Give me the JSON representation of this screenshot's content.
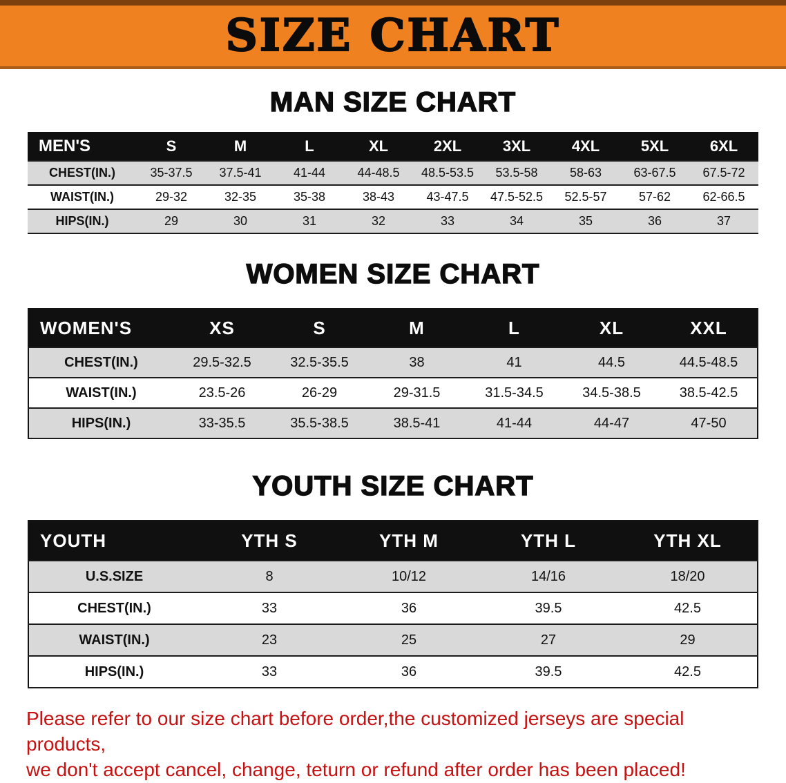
{
  "banner": {
    "title": "SIZE CHART"
  },
  "men": {
    "heading": "MAN SIZE CHART",
    "table": {
      "header": [
        "MEN'S",
        "S",
        "M",
        "L",
        "XL",
        "2XL",
        "3XL",
        "4XL",
        "5XL",
        "6XL"
      ],
      "rows": [
        [
          "CHEST(IN.)",
          "35-37.5",
          "37.5-41",
          "41-44",
          "44-48.5",
          "48.5-53.5",
          "53.5-58",
          "58-63",
          "63-67.5",
          "67.5-72"
        ],
        [
          "WAIST(IN.)",
          "29-32",
          "32-35",
          "35-38",
          "38-43",
          "43-47.5",
          "47.5-52.5",
          "52.5-57",
          "57-62",
          "62-66.5"
        ],
        [
          "HIPS(IN.)",
          "29",
          "30",
          "31",
          "32",
          "33",
          "34",
          "35",
          "36",
          "37"
        ]
      ]
    }
  },
  "women": {
    "heading": "WOMEN SIZE CHART",
    "table": {
      "header": [
        "WOMEN'S",
        "XS",
        "S",
        "M",
        "L",
        "XL",
        "XXL"
      ],
      "rows": [
        [
          "CHEST(IN.)",
          "29.5-32.5",
          "32.5-35.5",
          "38",
          "41",
          "44.5",
          "44.5-48.5"
        ],
        [
          "WAIST(IN.)",
          "23.5-26",
          "26-29",
          "29-31.5",
          "31.5-34.5",
          "34.5-38.5",
          "38.5-42.5"
        ],
        [
          "HIPS(IN.)",
          "33-35.5",
          "35.5-38.5",
          "38.5-41",
          "41-44",
          "44-47",
          "47-50"
        ]
      ]
    }
  },
  "youth": {
    "heading": "YOUTH SIZE CHART",
    "table": {
      "header": [
        "YOUTH",
        "YTH S",
        "YTH M",
        "YTH L",
        "YTH XL"
      ],
      "rows": [
        [
          "U.S.SIZE",
          "8",
          "10/12",
          "14/16",
          "18/20"
        ],
        [
          "CHEST(IN.)",
          "33",
          "36",
          "39.5",
          "42.5"
        ],
        [
          "WAIST(IN.)",
          "23",
          "25",
          "27",
          "29"
        ],
        [
          "HIPS(IN.)",
          "33",
          "36",
          "39.5",
          "42.5"
        ]
      ]
    }
  },
  "footer": {
    "line1": "Please refer to our size chart before order,the customized jerseys are special products,",
    "line2": "we don't accept cancel, change, teturn or refund after order has been placed!"
  },
  "colors": {
    "banner_bg": "#f08120",
    "banner_border": "#7c3f0e",
    "table_header_bg": "#101010",
    "row_alt_bg": "#d9d9d9",
    "disclaimer_text": "#c51111"
  }
}
